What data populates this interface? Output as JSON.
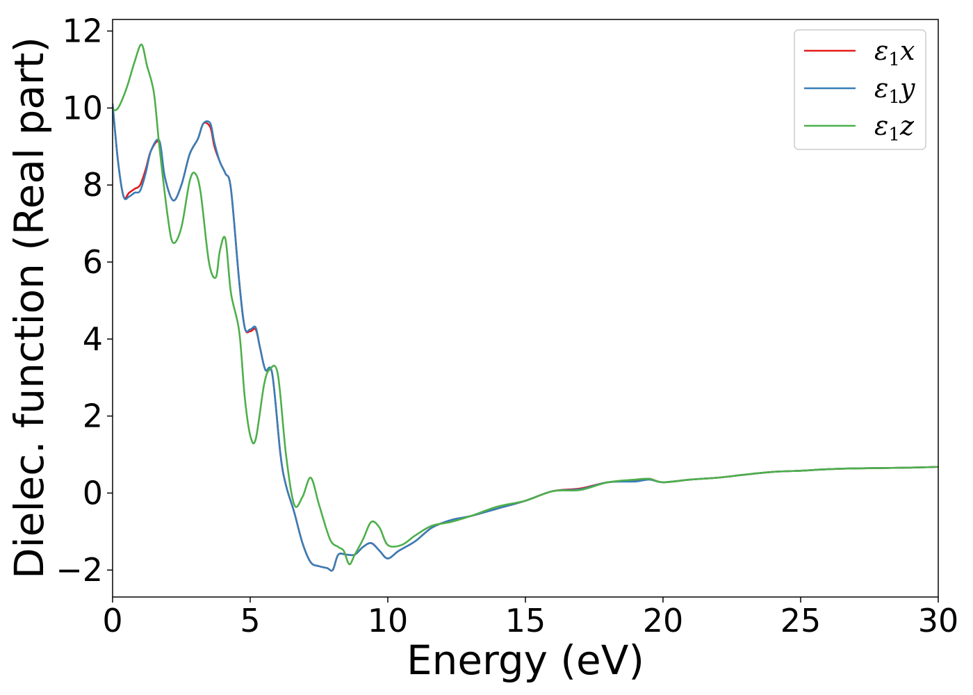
{
  "chart_data": {
    "type": "line",
    "xlabel": "Energy (eV)",
    "ylabel": "Dielec. function (Real part)",
    "xlim": [
      0,
      30
    ],
    "ylim": [
      -2.7,
      12.3
    ],
    "xticks": [
      0,
      5,
      10,
      15,
      20,
      25,
      30
    ],
    "yticks": [
      -2,
      0,
      2,
      4,
      6,
      8,
      10,
      12
    ],
    "xtick_labels": [
      "0",
      "5",
      "10",
      "15",
      "20",
      "25",
      "30"
    ],
    "ytick_labels": [
      "−2",
      "0",
      "2",
      "4",
      "6",
      "8",
      "10",
      "12"
    ],
    "grid": false,
    "legend_position": "top-right",
    "series": [
      {
        "name": "ε1x",
        "legend_symbol": "ε",
        "legend_sub": "1",
        "legend_var": "x",
        "color": "#e41a1c",
        "x": [
          0,
          0.2,
          0.4,
          0.6,
          0.8,
          1.0,
          1.2,
          1.4,
          1.7,
          1.9,
          2.2,
          2.5,
          2.8,
          3.1,
          3.3,
          3.55,
          3.7,
          3.9,
          4.1,
          4.3,
          4.6,
          4.8,
          5.0,
          5.2,
          5.35,
          5.55,
          5.8,
          6.1,
          6.3,
          6.6,
          6.9,
          7.2,
          7.5,
          7.8,
          8.0,
          8.2,
          8.5,
          8.8,
          9.1,
          9.4,
          9.7,
          10.0,
          10.4,
          11.0,
          11.6,
          12.3,
          13.0,
          14.0,
          15.0,
          16.0,
          17.0,
          18.0,
          19.0,
          19.5,
          20.0,
          21.0,
          22.0,
          23.0,
          24.0,
          25.0,
          26.0,
          27.0,
          28.0,
          29.0,
          30.0
        ],
        "y": [
          10.1,
          8.6,
          7.7,
          7.8,
          7.9,
          8.0,
          8.4,
          8.9,
          9.1,
          8.2,
          7.6,
          8.0,
          8.8,
          9.2,
          9.6,
          9.5,
          9.0,
          8.6,
          8.3,
          7.9,
          5.5,
          4.3,
          4.2,
          4.25,
          3.8,
          3.2,
          3.1,
          1.0,
          0.2,
          -0.5,
          -1.3,
          -1.8,
          -1.9,
          -1.95,
          -2.0,
          -1.6,
          -1.6,
          -1.6,
          -1.4,
          -1.3,
          -1.5,
          -1.7,
          -1.5,
          -1.25,
          -0.9,
          -0.7,
          -0.6,
          -0.4,
          -0.2,
          0.05,
          0.12,
          0.28,
          0.32,
          0.37,
          0.28,
          0.35,
          0.4,
          0.48,
          0.55,
          0.58,
          0.62,
          0.64,
          0.65,
          0.66,
          0.68
        ]
      },
      {
        "name": "ε1y",
        "legend_symbol": "ε",
        "legend_sub": "1",
        "legend_var": "y",
        "color": "#377eb8",
        "x": [
          0,
          0.2,
          0.4,
          0.6,
          0.8,
          1.0,
          1.2,
          1.4,
          1.7,
          1.9,
          2.2,
          2.5,
          2.8,
          3.1,
          3.3,
          3.55,
          3.7,
          3.9,
          4.1,
          4.3,
          4.6,
          4.8,
          5.0,
          5.2,
          5.35,
          5.55,
          5.8,
          6.1,
          6.3,
          6.6,
          6.9,
          7.2,
          7.5,
          7.8,
          8.0,
          8.2,
          8.5,
          8.8,
          9.1,
          9.4,
          9.7,
          10.0,
          10.4,
          11.0,
          11.6,
          12.3,
          13.0,
          14.0,
          15.0,
          16.0,
          17.0,
          18.0,
          19.0,
          19.5,
          20.0,
          21.0,
          22.0,
          23.0,
          24.0,
          25.0,
          26.0,
          27.0,
          28.0,
          29.0,
          30.0
        ],
        "y": [
          10.1,
          8.6,
          7.7,
          7.7,
          7.8,
          7.85,
          8.3,
          8.9,
          9.15,
          8.2,
          7.6,
          8.0,
          8.8,
          9.2,
          9.6,
          9.6,
          9.1,
          8.6,
          8.3,
          7.9,
          5.5,
          4.3,
          4.25,
          4.3,
          3.8,
          3.2,
          3.1,
          1.0,
          0.2,
          -0.5,
          -1.3,
          -1.8,
          -1.9,
          -1.95,
          -2.0,
          -1.6,
          -1.6,
          -1.6,
          -1.4,
          -1.3,
          -1.5,
          -1.7,
          -1.5,
          -1.25,
          -0.9,
          -0.7,
          -0.6,
          -0.4,
          -0.2,
          0.05,
          0.1,
          0.28,
          0.3,
          0.35,
          0.28,
          0.35,
          0.4,
          0.48,
          0.55,
          0.58,
          0.62,
          0.64,
          0.65,
          0.66,
          0.68
        ]
      },
      {
        "name": "ε1z",
        "legend_symbol": "ε",
        "legend_sub": "1",
        "legend_var": "z",
        "color": "#4daf4a",
        "x": [
          0,
          0.2,
          0.5,
          0.8,
          1.05,
          1.25,
          1.5,
          1.7,
          2.0,
          2.2,
          2.5,
          2.8,
          3.0,
          3.2,
          3.5,
          3.75,
          3.9,
          4.1,
          4.3,
          4.6,
          4.8,
          5.0,
          5.2,
          5.5,
          5.7,
          6.0,
          6.3,
          6.6,
          6.9,
          7.2,
          7.5,
          7.9,
          8.2,
          8.4,
          8.6,
          8.8,
          9.1,
          9.4,
          9.7,
          10.0,
          10.5,
          11.0,
          11.6,
          12.3,
          13.0,
          14.0,
          15.0,
          16.0,
          17.0,
          18.0,
          19.0,
          19.5,
          20.0,
          21.0,
          22.0,
          23.0,
          24.0,
          25.0,
          26.0,
          27.0,
          28.0,
          29.0,
          30.0
        ],
        "y": [
          9.95,
          10.0,
          10.5,
          11.2,
          11.65,
          11.1,
          10.4,
          9.0,
          7.2,
          6.5,
          6.9,
          8.1,
          8.3,
          7.8,
          6.0,
          5.6,
          6.3,
          6.6,
          5.2,
          4.2,
          2.5,
          1.5,
          1.4,
          2.8,
          3.2,
          3.1,
          1.0,
          -0.3,
          -0.1,
          0.4,
          -0.3,
          -1.2,
          -1.4,
          -1.5,
          -1.85,
          -1.6,
          -1.2,
          -0.75,
          -0.9,
          -1.35,
          -1.35,
          -1.1,
          -0.85,
          -0.75,
          -0.6,
          -0.35,
          -0.2,
          0.05,
          0.08,
          0.28,
          0.35,
          0.37,
          0.28,
          0.35,
          0.4,
          0.48,
          0.55,
          0.58,
          0.62,
          0.64,
          0.65,
          0.66,
          0.68
        ]
      }
    ]
  }
}
